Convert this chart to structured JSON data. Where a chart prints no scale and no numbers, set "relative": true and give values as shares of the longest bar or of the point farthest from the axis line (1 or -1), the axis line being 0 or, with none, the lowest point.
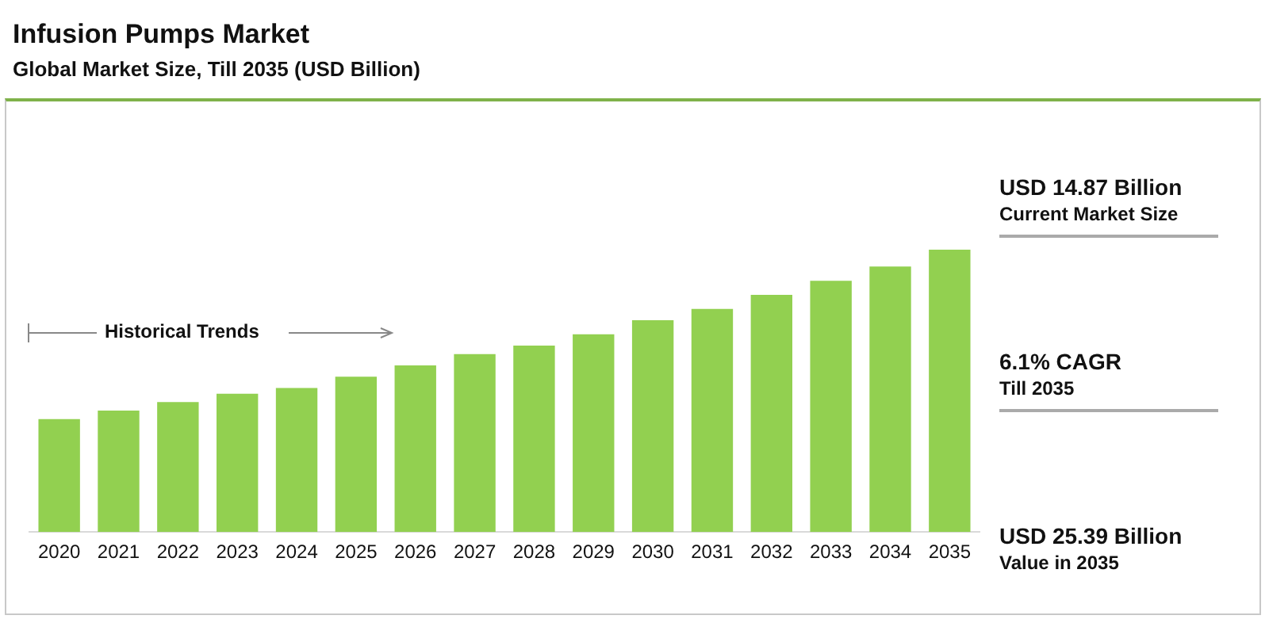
{
  "chart_data": {
    "type": "bar",
    "title": "Infusion Pumps Market",
    "subtitle": "Global Market Size, Till 2035 (USD Billion)",
    "categories": [
      "2020",
      "2021",
      "2022",
      "2023",
      "2024",
      "2025",
      "2026",
      "2027",
      "2028",
      "2029",
      "2030",
      "2031",
      "2032",
      "2033",
      "2034",
      "2035"
    ],
    "values": [
      0.4,
      0.43,
      0.46,
      0.49,
      0.51,
      0.55,
      0.59,
      0.63,
      0.66,
      0.7,
      0.75,
      0.79,
      0.84,
      0.89,
      0.94,
      1
    ],
    "color": "#92d050",
    "relative": true,
    "grid": false,
    "legend": false,
    "annotations": [
      "Historical Trends",
      "USD 14.87 Billion",
      "Current Market Size",
      "6.1% CAGR",
      "Till 2035",
      "USD 25.39 Billion",
      "Value in 2035"
    ]
  }
}
